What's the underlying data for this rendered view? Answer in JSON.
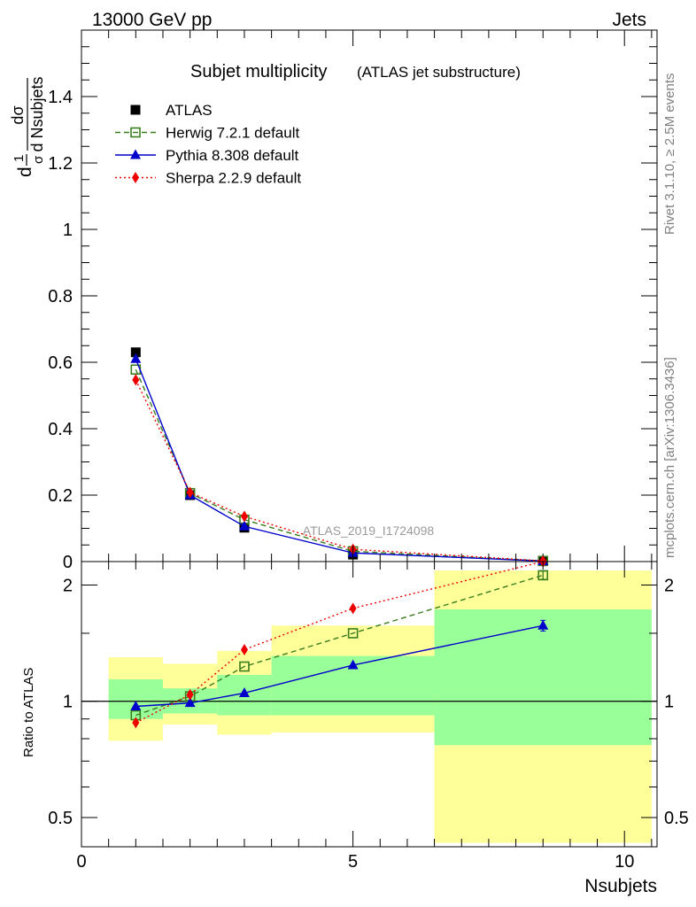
{
  "header": {
    "left": "13000 GeV pp",
    "right": "Jets"
  },
  "side_labels": {
    "rivet": "Rivet 3.1.10, ≥ 2.5M events",
    "mcplots": "mcplots.cern.ch [arXiv:1306.3436]"
  },
  "chart_data": [
    {
      "type": "line",
      "title": "Subjet multiplicity",
      "subtitle": "(ATLAS jet substructure)",
      "ylabel_parts": {
        "pre": "d",
        "frac1_num": "1",
        "frac1_den": "σ",
        "frac2_num": "dσ",
        "frac2_den": "d Nsubjets"
      },
      "watermark": "ATLAS_2019_I1724098",
      "xlim": [
        0,
        10.6
      ],
      "ylim": [
        0,
        1.6
      ],
      "xticks": [
        0,
        5,
        10
      ],
      "yticks": [
        0,
        0.2,
        0.4,
        0.6,
        0.8,
        1,
        1.2,
        1.4
      ],
      "ytick_labels": [
        "0",
        "0.2",
        "0.4",
        "0.6",
        "0.8",
        "1",
        "1.2",
        "1.4"
      ],
      "x": [
        1,
        2,
        3,
        5,
        8.5
      ],
      "series": [
        {
          "name": "ATLAS",
          "color": "#000000",
          "marker": "square-filled",
          "line": "none",
          "values": [
            0.63,
            0.2,
            0.102,
            0.021,
            0.001
          ]
        },
        {
          "name": "Herwig 7.2.1 default",
          "color": "#3a7d1e",
          "marker": "square-open",
          "line": "dashed",
          "values": [
            0.578,
            0.206,
            0.126,
            0.031,
            0.002
          ]
        },
        {
          "name": "Pythia 8.308 default",
          "color": "#0000cc",
          "marker": "triangle",
          "line": "solid",
          "values": [
            0.61,
            0.2,
            0.106,
            0.026,
            0.0015
          ]
        },
        {
          "name": "Sherpa 2.2.9 default",
          "color": "#ee0000",
          "marker": "diamond",
          "line": "dotted",
          "values": [
            0.547,
            0.208,
            0.136,
            0.037,
            0.002
          ]
        }
      ],
      "legend_position": "top-left"
    },
    {
      "type": "line",
      "ylabel": "Ratio to ATLAS",
      "xlabel": "Nsubjets",
      "log_y": true,
      "ylim": [
        0.42,
        2.3
      ],
      "xlim": [
        0,
        10.6
      ],
      "xticks": [
        0,
        5,
        10
      ],
      "xtick_labels": [
        "0",
        "5",
        "10"
      ],
      "yticks": [
        0.5,
        1,
        2
      ],
      "ytick_labels": [
        "0.5",
        "1",
        "2"
      ],
      "bins": [
        {
          "lo": 0.5,
          "hi": 1.5,
          "stat": [
            0.9,
            1.14
          ],
          "total": [
            0.79,
            1.3
          ]
        },
        {
          "lo": 1.5,
          "hi": 2.5,
          "stat": [
            0.93,
            1.08
          ],
          "total": [
            0.87,
            1.25
          ]
        },
        {
          "lo": 2.5,
          "hi": 3.5,
          "stat": [
            0.92,
            1.17
          ],
          "total": [
            0.82,
            1.35
          ]
        },
        {
          "lo": 3.5,
          "hi": 6.5,
          "stat": [
            0.92,
            1.31
          ],
          "total": [
            0.83,
            1.57
          ]
        },
        {
          "lo": 6.5,
          "hi": 10.5,
          "stat": [
            0.77,
            1.73
          ],
          "total": [
            0.43,
            2.18
          ]
        }
      ],
      "x": [
        1,
        2,
        3,
        5,
        8.5
      ],
      "series": [
        {
          "name": "Herwig 7.2.1 default",
          "color": "#3a7d1e",
          "marker": "square-open",
          "line": "dashed",
          "values": [
            0.92,
            1.03,
            1.23,
            1.5,
            2.12
          ],
          "err": [
            0,
            0,
            0,
            0,
            0.05
          ]
        },
        {
          "name": "Pythia 8.308 default",
          "color": "#0000cc",
          "marker": "triangle",
          "line": "solid",
          "values": [
            0.97,
            0.99,
            1.05,
            1.24,
            1.57
          ],
          "err": [
            0,
            0,
            0,
            0,
            0.05
          ]
        },
        {
          "name": "Sherpa 2.2.9 default",
          "color": "#ee0000",
          "marker": "diamond",
          "line": "dotted",
          "values": [
            0.88,
            1.04,
            1.36,
            1.74,
            2.3
          ],
          "err": [
            0,
            0,
            0,
            0,
            0
          ]
        }
      ]
    }
  ]
}
